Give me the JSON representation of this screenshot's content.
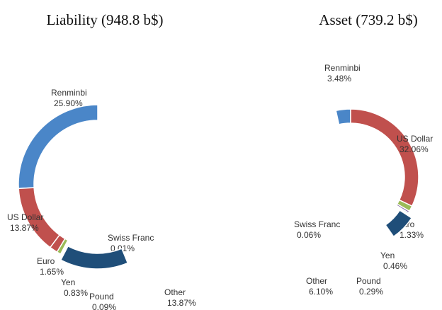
{
  "chart_data": [
    {
      "type": "donut",
      "title": "Liability (948.8 b$)",
      "direction": "counterclockwise",
      "categories": [
        "Renminbi",
        "US Dollar",
        "Euro",
        "Yen",
        "Pound",
        "Swiss Franc",
        "Other"
      ],
      "values": [
        25.9,
        13.87,
        1.65,
        0.83,
        0.09,
        0.01,
        13.87
      ],
      "value_labels": [
        "25.90%",
        "13.87%",
        "1.65%",
        "0.83%",
        "0.09%",
        "0.01%",
        "13.87%"
      ],
      "colors": [
        "#4a86c8",
        "#c0504d",
        "#c0504d",
        "#9bbb59",
        "#8064a2",
        "#4bacc6",
        "#1f4e79"
      ]
    },
    {
      "type": "donut",
      "title": "Asset (739.2 b$)",
      "direction": "clockwise",
      "categories": [
        "Renminbi",
        "US Dollar",
        "Euro",
        "Yen",
        "Pound",
        "Swiss Franc",
        "Other"
      ],
      "values": [
        3.48,
        32.06,
        1.33,
        0.46,
        0.29,
        0.06,
        6.1
      ],
      "value_labels": [
        "3.48%",
        "32.06%",
        "1.33%",
        "0.46%",
        "0.29%",
        "0.06%",
        "6.10%"
      ],
      "colors": [
        "#4a86c8",
        "#c0504d",
        "#9bbb59",
        "#8064a2",
        "#4bacc6",
        "#f79646",
        "#1f4e79"
      ]
    }
  ]
}
